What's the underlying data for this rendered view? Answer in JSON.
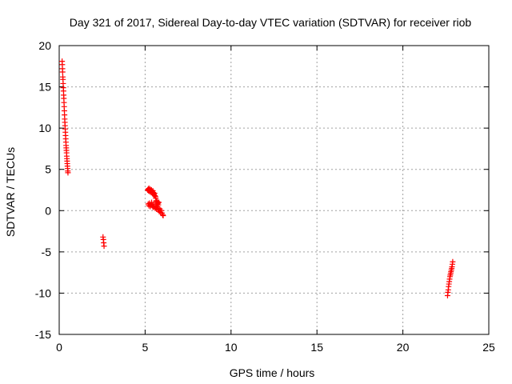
{
  "chart_data": {
    "type": "scatter",
    "title": "Day 321 of 2017, Sidereal Day-to-day VTEC variation (SDTVAR) for receiver riob",
    "xlabel": "GPS time / hours",
    "ylabel": "SDTVAR / TECUs",
    "xlim": [
      0,
      25
    ],
    "ylim": [
      -15,
      20
    ],
    "xticks": [
      0,
      5,
      10,
      15,
      20,
      25
    ],
    "yticks": [
      -15,
      -10,
      -5,
      0,
      5,
      10,
      15,
      20
    ],
    "xtick_labels": [
      "0",
      "5",
      "10",
      "15",
      "20",
      "25"
    ],
    "ytick_labels": [
      "-15",
      "-10",
      "-5",
      "0",
      "5",
      "10",
      "15",
      "20"
    ],
    "grid": true,
    "marker": "plus",
    "color": "#ff0000",
    "series": [
      {
        "x": [
          0.17,
          0.18,
          0.19,
          0.2,
          0.21,
          0.22,
          0.23,
          0.24,
          0.25,
          0.26,
          0.27,
          0.28,
          0.29,
          0.3,
          0.31,
          0.32,
          0.33,
          0.34,
          0.35,
          0.36,
          0.37,
          0.38,
          0.39,
          0.4,
          0.41,
          0.42,
          0.43,
          0.44,
          0.45,
          0.46,
          0.47,
          0.48,
          0.49,
          0.5,
          0.51,
          2.55,
          2.57,
          2.59,
          2.61,
          5.15,
          5.18,
          5.2,
          5.22,
          5.25,
          5.27,
          5.3,
          5.32,
          5.35,
          5.37,
          5.4,
          5.43,
          5.45,
          5.48,
          5.5,
          5.52,
          5.55,
          5.57,
          5.6,
          5.62,
          5.18,
          5.22,
          5.26,
          5.3,
          5.34,
          5.38,
          5.42,
          5.46,
          5.5,
          5.54,
          5.58,
          5.62,
          5.66,
          5.7,
          5.74,
          5.78,
          5.82,
          5.86,
          5.9,
          5.94,
          5.98,
          6.02,
          6.05,
          5.65,
          5.68,
          5.7,
          5.72,
          5.75,
          5.77,
          5.8,
          22.6,
          22.62,
          22.64,
          22.66,
          22.68,
          22.7,
          22.72,
          22.74,
          22.76,
          22.78,
          22.8,
          22.82,
          22.84,
          22.86,
          22.88,
          22.9
        ],
        "y": [
          18.1,
          17.7,
          17.2,
          16.8,
          16.2,
          15.9,
          15.4,
          14.9,
          14.5,
          14.0,
          13.6,
          13.1,
          12.6,
          12.1,
          11.6,
          11.1,
          10.7,
          10.3,
          9.9,
          9.5,
          9.1,
          8.7,
          8.3,
          7.9,
          7.6,
          7.3,
          7.0,
          6.6,
          6.3,
          6.0,
          5.7,
          5.4,
          5.1,
          4.8,
          4.6,
          -3.2,
          -3.5,
          -3.9,
          -4.3,
          2.5,
          2.6,
          2.4,
          2.7,
          2.5,
          2.3,
          2.6,
          2.4,
          2.2,
          2.5,
          2.3,
          2.1,
          2.4,
          2.2,
          2.0,
          1.9,
          2.1,
          1.8,
          1.7,
          1.5,
          0.8,
          0.6,
          0.9,
          0.5,
          0.7,
          1.0,
          0.6,
          0.4,
          0.8,
          0.5,
          0.3,
          0.6,
          0.2,
          0.5,
          0.1,
          0.3,
          -0.1,
          0.2,
          -0.2,
          0.0,
          -0.3,
          -0.5,
          -0.6,
          1.2,
          1.0,
          0.8,
          1.1,
          0.9,
          0.7,
          1.0,
          -10.3,
          -9.9,
          -9.6,
          -9.2,
          -8.9,
          -8.6,
          -8.3,
          -8.0,
          -7.8,
          -7.6,
          -7.4,
          -7.2,
          -7.0,
          -6.8,
          -6.5,
          -6.2
        ]
      }
    ]
  }
}
